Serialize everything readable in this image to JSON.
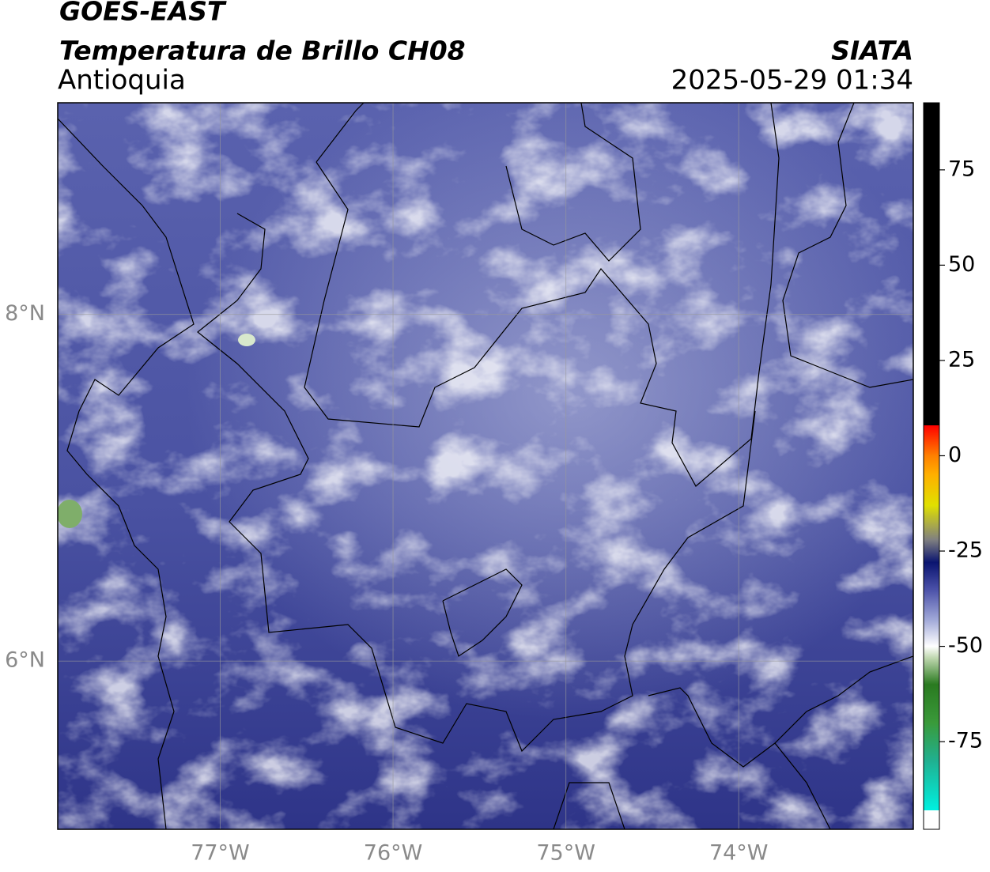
{
  "header": {
    "title": "GOES-EAST",
    "subtitle": "Temperatura de Brillo CH08",
    "region": "Antioquia",
    "source": "SIATA",
    "timestamp": "2025-05-29 01:34"
  },
  "map": {
    "xlim": [
      -77.94,
      -72.99
    ],
    "ylim": [
      5.03,
      9.22
    ],
    "xticks": [
      {
        "value": -77,
        "label": "77°W"
      },
      {
        "value": -76,
        "label": "76°W"
      },
      {
        "value": -75,
        "label": "75°W"
      },
      {
        "value": -74,
        "label": "74°W"
      }
    ],
    "yticks": [
      {
        "value": 6,
        "label": "6°N"
      },
      {
        "value": 8,
        "label": "8°N"
      }
    ],
    "grid": true
  },
  "colorbar": {
    "lim": [
      -98,
      92.6
    ],
    "ticks": [
      -75,
      -50,
      -25,
      0,
      25,
      50,
      75
    ],
    "colormap": [
      {
        "value": -93,
        "color": "#ffffff"
      },
      {
        "value": -93,
        "color": "#00f0e0"
      },
      {
        "value": -80,
        "color": "#20b090"
      },
      {
        "value": -70,
        "color": "#3a9a3a"
      },
      {
        "value": -60,
        "color": "#2a7a20"
      },
      {
        "value": -53,
        "color": "#c0d8b0"
      },
      {
        "value": -50,
        "color": "#ffffff"
      },
      {
        "value": -43,
        "color": "#a0a8d8"
      },
      {
        "value": -35,
        "color": "#4a50a8"
      },
      {
        "value": -28,
        "color": "#0a1470"
      },
      {
        "value": -22,
        "color": "#808080"
      },
      {
        "value": -13,
        "color": "#e0e000"
      },
      {
        "value": -5,
        "color": "#ffb000"
      },
      {
        "value": 0,
        "color": "#ff8000"
      },
      {
        "value": 8,
        "color": "#ff0000"
      },
      {
        "value": 8,
        "color": "#000000"
      }
    ]
  }
}
